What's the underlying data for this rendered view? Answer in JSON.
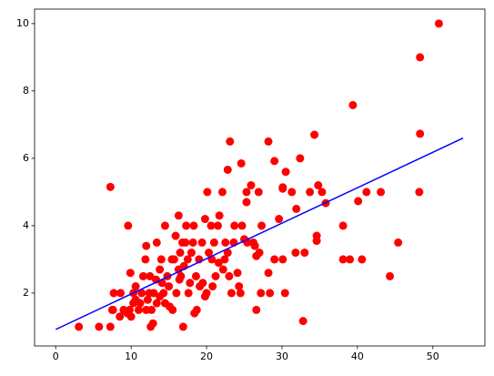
{
  "chart_data": {
    "type": "scatter",
    "xlim": [
      -2.8,
      56.9
    ],
    "ylim": [
      0.43,
      10.43
    ],
    "xticks": [
      0,
      10,
      20,
      30,
      40,
      50
    ],
    "yticks": [
      2,
      4,
      6,
      8,
      10
    ],
    "series": [
      {
        "type": "scatter",
        "color": "#ff0000",
        "x": [
          50.8,
          48.3,
          39.4,
          48.3,
          34.3,
          23.1,
          28.2,
          29,
          32.4,
          7.25,
          48.2,
          22.8,
          24.6,
          30.5,
          30.1,
          34.8,
          35.3,
          41.2,
          43.1,
          40.1,
          38.1,
          38.1,
          39,
          40.6,
          44.3,
          45.4,
          32.8,
          3.07,
          5.75,
          7.25,
          12.6,
          12.9,
          16.9,
          7.5,
          8.5,
          9.6,
          12,
          13.4,
          14.5,
          16.3,
          18.3,
          19.8,
          20.1,
          22.1,
          25.3,
          25.9,
          26.9,
          31.3,
          31.9,
          33.7,
          35.8,
          34.6,
          34.6,
          33,
          31.8,
          30.4,
          30.1,
          29,
          28.2,
          28.4,
          27.2,
          26.6,
          24.5,
          24.1,
          25,
          25.4,
          27,
          26.4,
          27.3,
          29.6,
          30.1,
          23.6,
          21,
          20.7,
          21.5,
          22.5,
          23.3,
          24.3,
          20,
          19.5,
          19.8,
          18.7,
          18.4,
          17.8,
          17.5,
          18.2,
          17.3,
          16.5,
          16,
          15.4,
          15,
          14.3,
          14,
          13.4,
          13,
          12.7,
          12.2,
          11.6,
          11,
          10.6,
          10.3,
          10,
          10.3,
          9.8,
          9.5,
          9,
          8.6,
          7.7,
          7.6,
          11.4,
          11.9,
          12.5,
          13.8,
          14.8,
          15.7,
          16.8,
          17,
          18,
          19,
          19.4,
          20.3,
          21.2,
          22.2,
          22.8,
          23.7,
          24.7,
          26.2,
          15.1,
          16.6,
          18.6,
          20.6,
          21.7,
          22.4,
          15.5,
          13.3,
          14.5,
          11.2,
          12.4,
          17.6,
          19.1,
          20.8,
          16.3,
          15.9,
          17.2,
          14.1,
          13.8,
          10.6,
          9.9,
          12,
          21.6,
          23,
          25.3,
          26.6,
          16.4
        ],
        "values": [
          10,
          9,
          7.58,
          6.73,
          6.7,
          6.5,
          6.5,
          5.92,
          6,
          5.15,
          5,
          5.66,
          5.85,
          5.6,
          5.14,
          5.2,
          5,
          5,
          5,
          4.73,
          4,
          3,
          3,
          3,
          2.5,
          3.5,
          1.17,
          1,
          1,
          1,
          1,
          1.1,
          1,
          1.5,
          1.3,
          4,
          3.4,
          3.5,
          4,
          4.3,
          4,
          4.2,
          5,
          5,
          4.7,
          5.2,
          5,
          5,
          4.5,
          5,
          4.67,
          3.7,
          3.55,
          3.2,
          3.2,
          2,
          3,
          3,
          2.6,
          2,
          2,
          1.5,
          2,
          2.6,
          3.6,
          3.5,
          3.2,
          3.4,
          4,
          4.2,
          5.1,
          3.5,
          3.5,
          3,
          4,
          3.5,
          2,
          2.2,
          2,
          2.3,
          1.9,
          1.5,
          1.4,
          2.3,
          3,
          3.5,
          4,
          3.2,
          2,
          3,
          2.2,
          2,
          3,
          1.7,
          2,
          1.5,
          1.8,
          2.5,
          1.5,
          1.8,
          2,
          1.3,
          1.7,
          1.5,
          1.4,
          1.5,
          2,
          2,
          1.5,
          2,
          3,
          2.5,
          2.7,
          2.5,
          3,
          3.5,
          2.8,
          3.2,
          3,
          3.5,
          3.2,
          2.5,
          2.7,
          3.2,
          4,
          4,
          3.5,
          1.6,
          2.5,
          2.5,
          4,
          4.3,
          3,
          1.5,
          2.4,
          1.7,
          1.7,
          2,
          2,
          2.2,
          2.2,
          2.7,
          3.7,
          3.5,
          2.3,
          1.9,
          2.2,
          2.6,
          1.5,
          2.9,
          2.5,
          5,
          3.1,
          2.4
        ]
      },
      {
        "type": "line",
        "color": "#0000ff",
        "x": [
          0,
          54
        ],
        "values": [
          0.92,
          6.6
        ]
      }
    ]
  }
}
